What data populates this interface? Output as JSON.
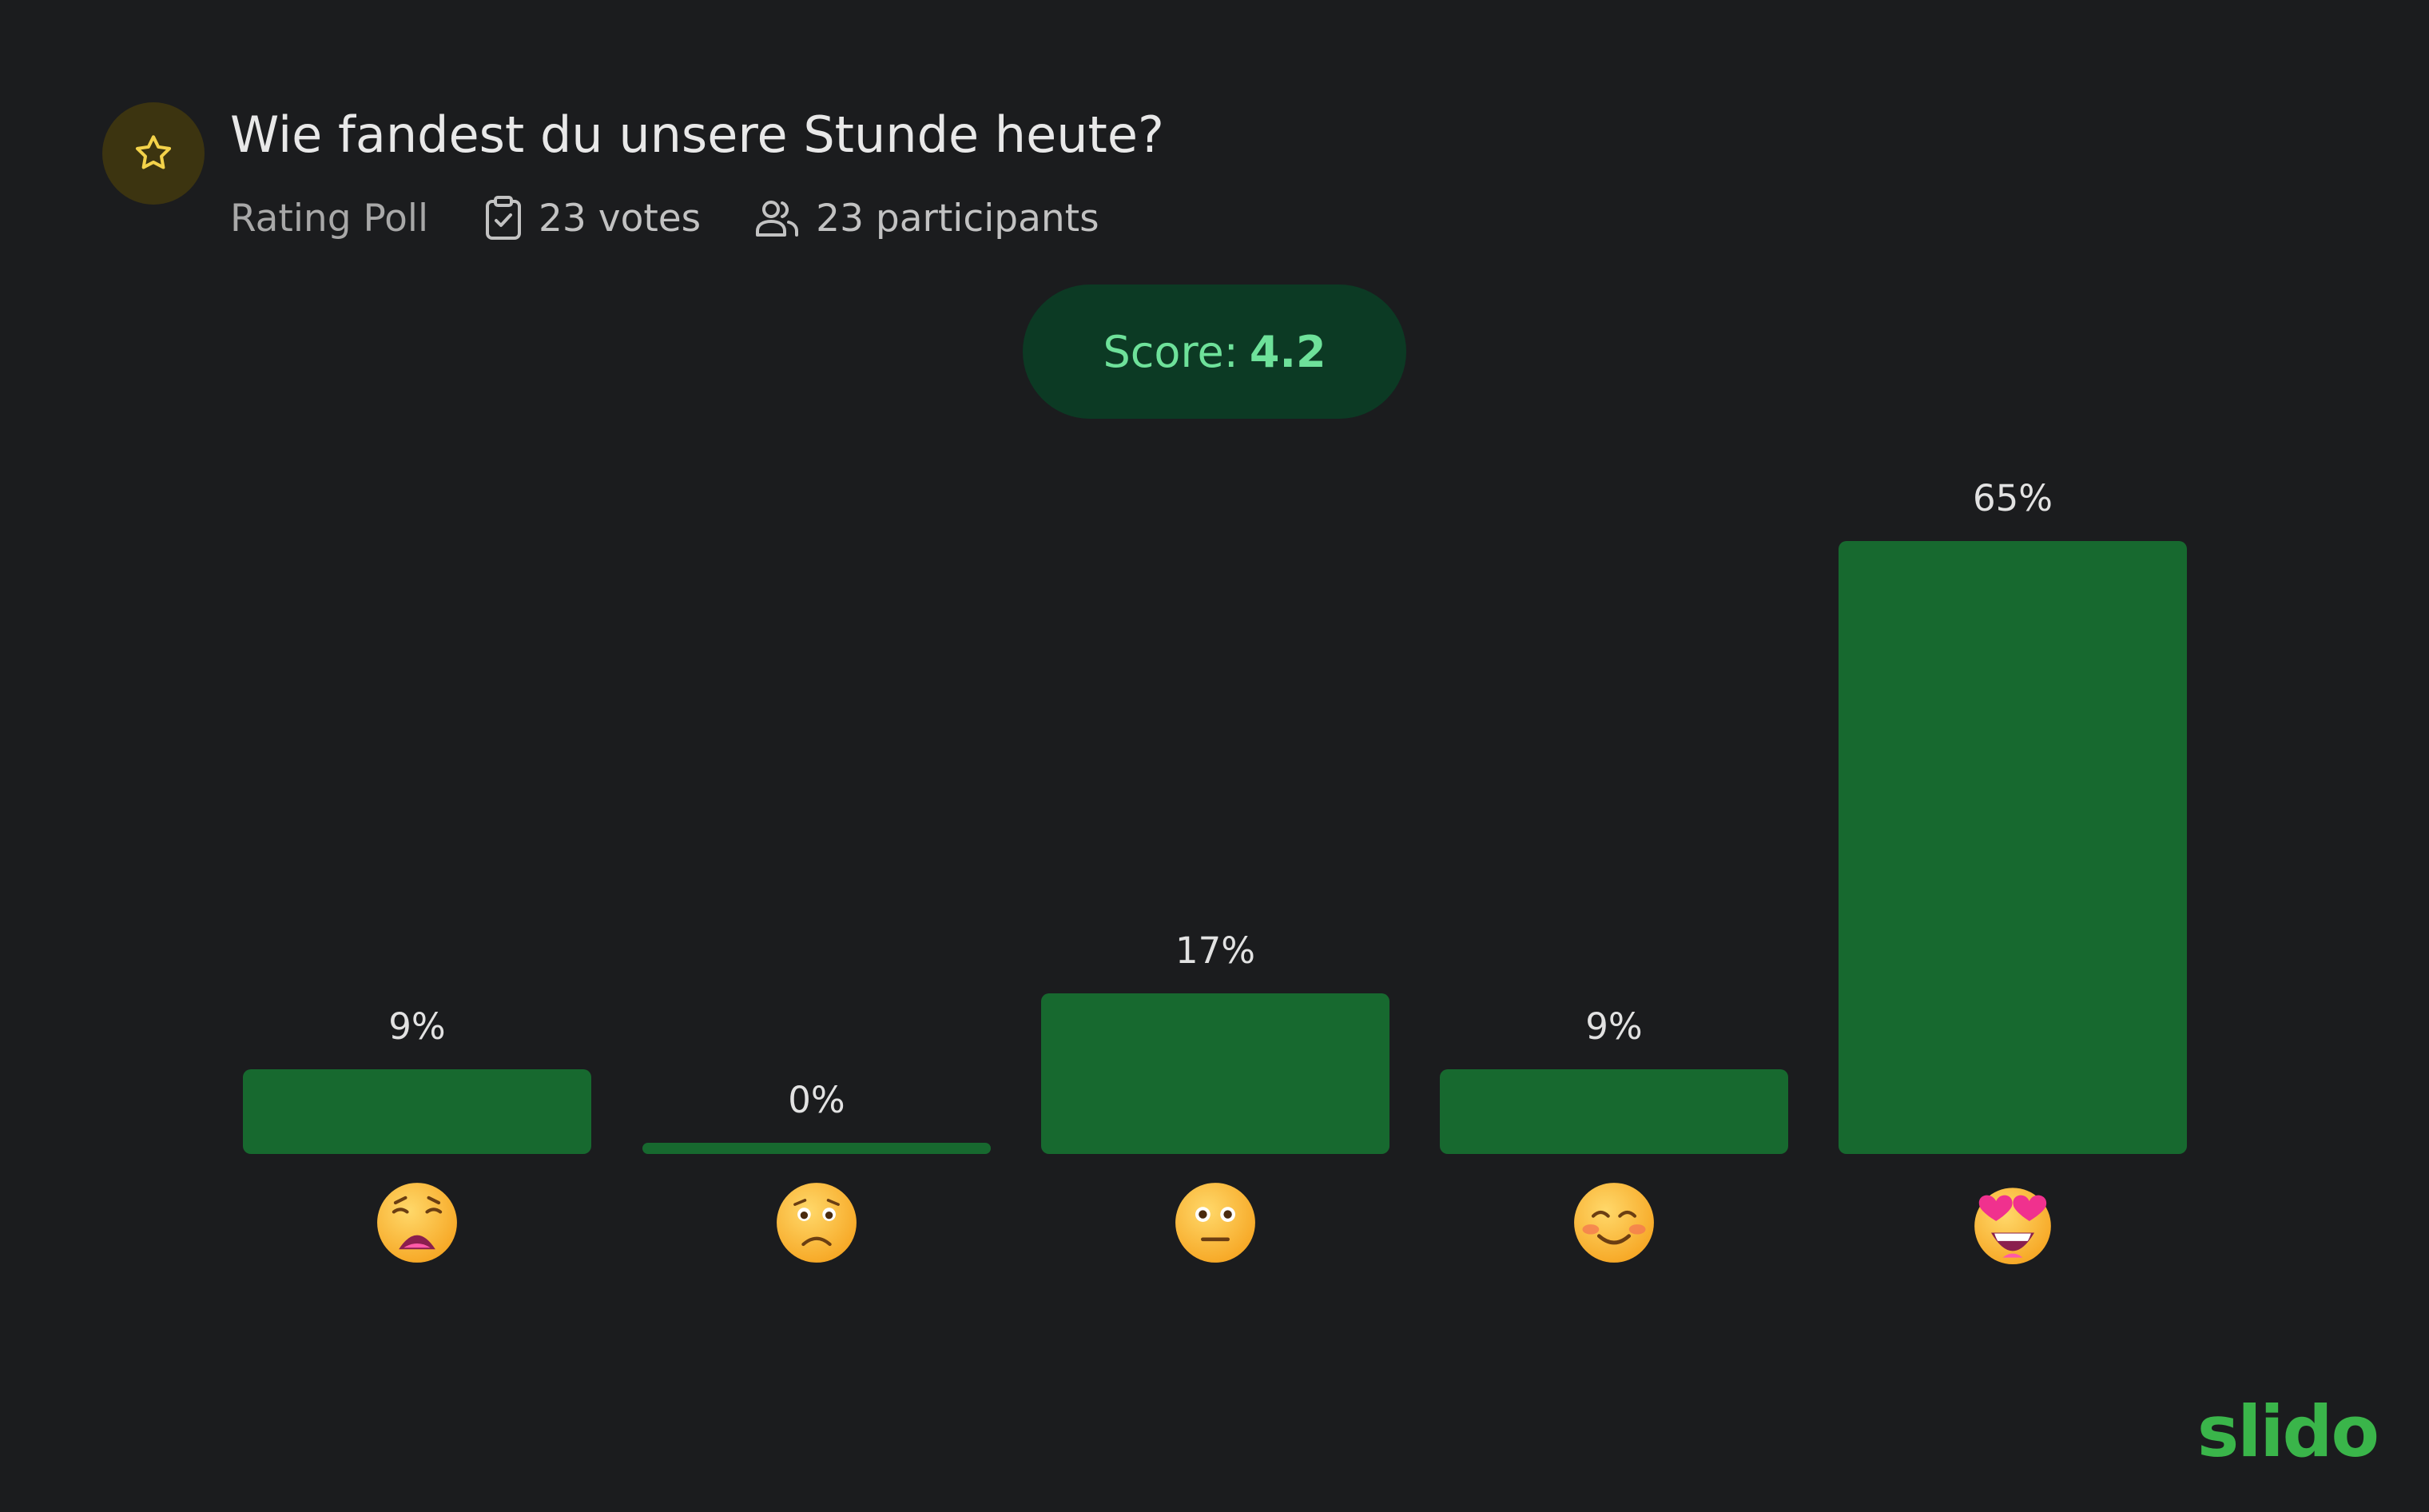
{
  "header": {
    "title": "Wie fandest du unsere Stunde heute?",
    "poll_type": "Rating Poll",
    "votes": "23 votes",
    "participants": "23 participants"
  },
  "score": {
    "label": "Score:",
    "value": "4.2"
  },
  "chart_data": {
    "type": "bar",
    "categories": [
      "weary-face",
      "frowning-face",
      "neutral-face",
      "smiling-face",
      "star-struck-face"
    ],
    "values": [
      9,
      0,
      17,
      9,
      65
    ],
    "labels": [
      "9%",
      "0%",
      "17%",
      "9%",
      "65%"
    ],
    "ylabel": "%",
    "ylim": [
      0,
      65
    ]
  },
  "colors": {
    "bar": "#17692f",
    "accent": "#6ee19a",
    "brand": "#3ab54a",
    "star": "#f3d24a"
  },
  "brand": {
    "logo": "slido"
  }
}
